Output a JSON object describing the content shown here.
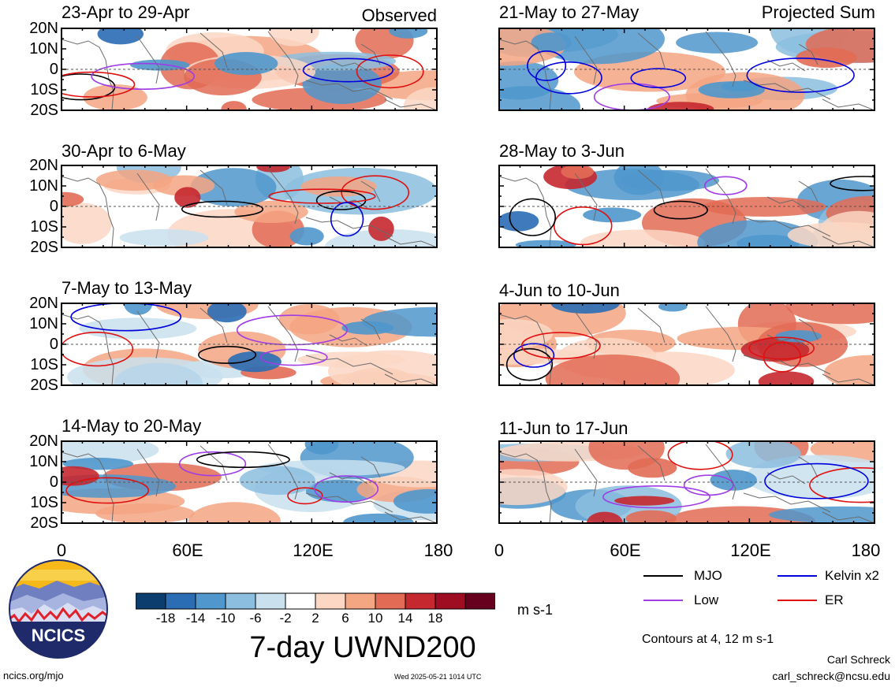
{
  "header": {
    "observed_label": "Observed",
    "projected_label": "Projected Sum"
  },
  "panels": [
    {
      "title": "23-Apr to 29-Apr",
      "col": 0,
      "row": 0
    },
    {
      "title": "30-Apr to 6-May",
      "col": 0,
      "row": 1
    },
    {
      "title": "7-May to 13-May",
      "col": 0,
      "row": 2
    },
    {
      "title": "14-May to 20-May",
      "col": 0,
      "row": 3
    },
    {
      "title": "21-May to 27-May",
      "col": 1,
      "row": 0
    },
    {
      "title": "28-May to 3-Jun",
      "col": 1,
      "row": 1
    },
    {
      "title": "4-Jun to 10-Jun",
      "col": 1,
      "row": 2
    },
    {
      "title": "11-Jun to 17-Jun",
      "col": 1,
      "row": 3
    }
  ],
  "chart_data": {
    "type": "heatmap",
    "title": "7-day UWND200",
    "units": "m s-1",
    "x_ticks": [
      "0",
      "60E",
      "120E",
      "180"
    ],
    "y_ticks": [
      "20N",
      "10N",
      "0",
      "10S",
      "20S"
    ],
    "xlim": [
      0,
      180
    ],
    "ylim": [
      -20,
      20
    ],
    "colorbar": {
      "ticks": [
        "-18",
        "-14",
        "-10",
        "-6",
        "-2",
        "2",
        "6",
        "10",
        "14",
        "18"
      ],
      "colors": [
        "#0b3d6e",
        "#2a6db5",
        "#4f97cc",
        "#8cbedf",
        "#c9e0ef",
        "#ffffff",
        "#fbd7c4",
        "#f4a582",
        "#e26b55",
        "#c5282f",
        "#9e0d22",
        "#67001f"
      ]
    },
    "legend": [
      {
        "name": "MJO",
        "color": "#000000"
      },
      {
        "name": "Kelvin x2",
        "color": "#0000dd"
      },
      {
        "name": "Low",
        "color": "#a03ce6"
      },
      {
        "name": "ER",
        "color": "#e01010"
      }
    ],
    "contour_note": "Contours at 4, 12 m s-1"
  },
  "footer": {
    "logo_text": "NCICS",
    "url": "ncics.org/mjo",
    "timestamp": "Wed 2025-05-21 1014 UTC",
    "author": "Carl Schreck",
    "email": "carl_schreck@ncsu.edu"
  }
}
